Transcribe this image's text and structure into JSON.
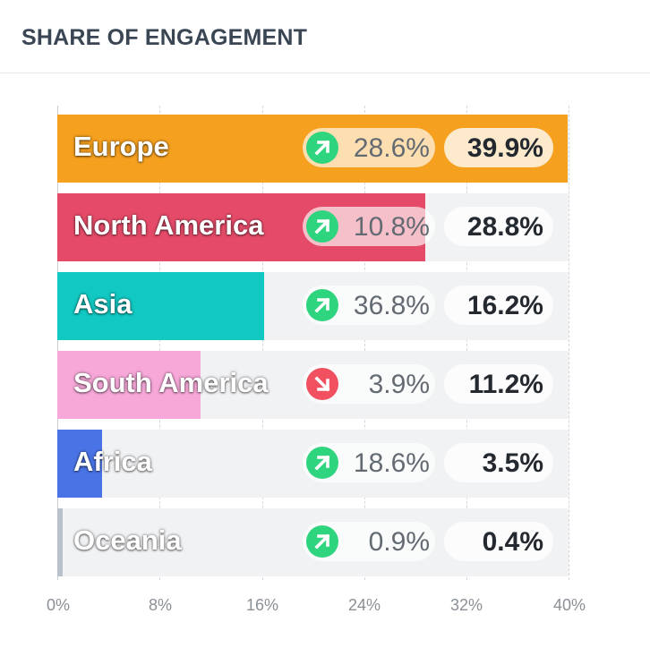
{
  "title": "SHARE OF ENGAGEMENT",
  "chart_data": {
    "type": "bar",
    "orientation": "horizontal",
    "title": "SHARE OF ENGAGEMENT",
    "xlim": [
      0,
      40
    ],
    "x_ticks": [
      "0%",
      "8%",
      "16%",
      "24%",
      "32%",
      "40%"
    ],
    "grid": true,
    "categories": [
      "Europe",
      "North America",
      "Asia",
      "South America",
      "Africa",
      "Oceania"
    ],
    "values": [
      39.9,
      28.8,
      16.2,
      11.2,
      3.5,
      0.4
    ],
    "rows": [
      {
        "label": "Europe",
        "value": 39.9,
        "share_text": "39.9%",
        "change_text": "28.6%",
        "trend": "up",
        "color": "#f5a01f"
      },
      {
        "label": "North America",
        "value": 28.8,
        "share_text": "28.8%",
        "change_text": "10.8%",
        "trend": "up",
        "color": "#e54b69"
      },
      {
        "label": "Asia",
        "value": 16.2,
        "share_text": "16.2%",
        "change_text": "36.8%",
        "trend": "up",
        "color": "#12c8c2"
      },
      {
        "label": "South America",
        "value": 11.2,
        "share_text": "11.2%",
        "change_text": "3.9%",
        "trend": "down",
        "color": "#f7a8d9"
      },
      {
        "label": "Africa",
        "value": 3.5,
        "share_text": "3.5%",
        "change_text": "18.6%",
        "trend": "up",
        "color": "#4a73e6"
      },
      {
        "label": "Oceania",
        "value": 0.4,
        "share_text": "0.4%",
        "change_text": "0.9%",
        "trend": "up",
        "color": "#b8c0cc"
      }
    ]
  },
  "colors": {
    "up": "#2fd47e",
    "down": "#f0505f"
  }
}
